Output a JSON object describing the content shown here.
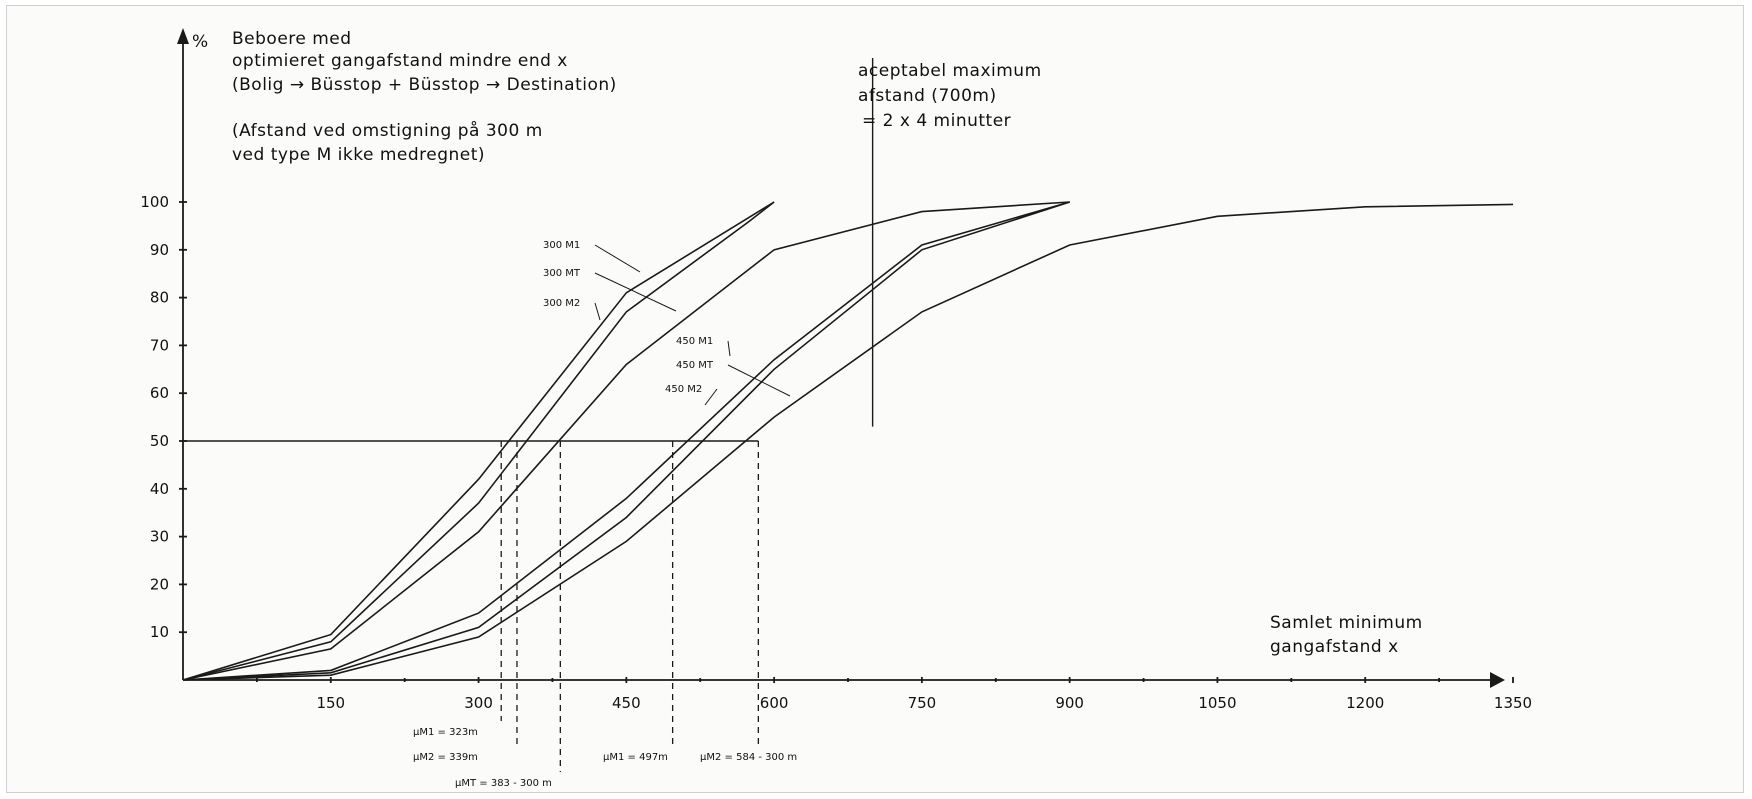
{
  "chart_data": {
    "type": "line",
    "ylabel": "%",
    "xlabel_lines": [
      "Samlet minimum",
      "gangafstand x"
    ],
    "title_lines": [
      "Beboere med",
      "optimieret gangafstand mindre end x",
      "(Bolig → Büsstop + Büsstop → Destination)"
    ],
    "note_lines": [
      "(Afstand ved omstigning på 300 m",
      "ved type M ikke medregnet)"
    ],
    "xlim": [
      0,
      1400
    ],
    "ylim": [
      0,
      100
    ],
    "x_ticks": [
      150,
      300,
      450,
      600,
      750,
      900,
      1050,
      1200,
      1350
    ],
    "y_ticks": [
      10,
      20,
      30,
      40,
      50,
      60,
      70,
      80,
      90,
      100
    ],
    "series": [
      {
        "name": "300 M1",
        "x": [
          0,
          150,
          300,
          450,
          600
        ],
        "y": [
          0,
          9.5,
          42,
          81,
          100
        ]
      },
      {
        "name": "300 M2",
        "x": [
          0,
          150,
          300,
          450,
          575,
          600
        ],
        "y": [
          0,
          8,
          37,
          77,
          96,
          100
        ]
      },
      {
        "name": "300 MT",
        "x": [
          0,
          150,
          300,
          450,
          600,
          750,
          900
        ],
        "y": [
          0,
          6.5,
          31,
          66,
          90,
          98,
          100
        ]
      },
      {
        "name": "450 M1",
        "x": [
          0,
          150,
          300,
          450,
          600,
          750,
          900
        ],
        "y": [
          0,
          2,
          14,
          38,
          67,
          91,
          100
        ]
      },
      {
        "name": "450 MT",
        "x": [
          0,
          150,
          300,
          450,
          600,
          750,
          900
        ],
        "y": [
          0,
          1.5,
          11,
          34,
          65,
          90,
          100
        ]
      },
      {
        "name": "450 M2",
        "x": [
          0,
          150,
          300,
          450,
          600,
          750,
          900,
          1050,
          1200,
          1350
        ],
        "y": [
          0,
          1,
          9,
          29,
          55,
          77,
          91,
          97,
          99,
          99.5
        ]
      }
    ],
    "reference_lines": {
      "horizontal_y": 50,
      "vertical_x": 700,
      "vertical_label_lines": [
        "aceptabel maximum",
        "afstand (700m)",
        "= 2 x 4 minutter"
      ]
    },
    "median_markers": [
      {
        "label": "μM1 = 323m",
        "x": 323
      },
      {
        "label": "μM2 = 339m",
        "x": 339
      },
      {
        "label": "μMT = 383 - 300 m",
        "x": 383
      },
      {
        "label": "μM1 = 497m",
        "x": 497
      },
      {
        "label": "μM2 = 584 - 300 m",
        "x": 584
      }
    ]
  }
}
